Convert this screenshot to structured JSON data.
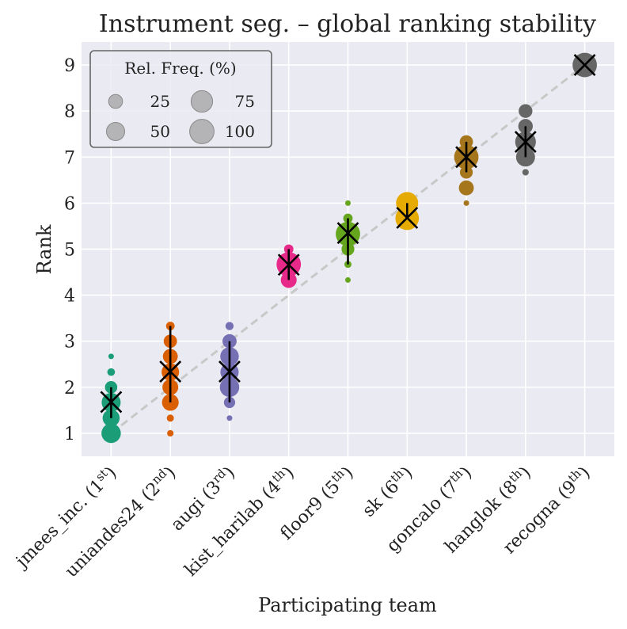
{
  "chart_data": {
    "type": "scatter",
    "title": "Instrument seg. – global ranking stability",
    "xlabel": "Participating team",
    "ylabel": "Rank",
    "ylim": [
      0.5,
      9.5
    ],
    "yticks": [
      "1",
      "2",
      "3",
      "4",
      "5",
      "6",
      "7",
      "8",
      "9"
    ],
    "grid": true,
    "reference_line": {
      "style": "dashed",
      "color": "#c8c8c8",
      "from": [
        1,
        1
      ],
      "to": [
        9,
        9
      ]
    },
    "legend": {
      "title": "Rel. Freq. (%)",
      "position": "top-left",
      "entries": [
        {
          "label": "25",
          "freq": 25
        },
        {
          "label": "50",
          "freq": 50
        },
        {
          "label": "75",
          "freq": 75
        },
        {
          "label": "100",
          "freq": 100
        }
      ]
    },
    "teams": [
      {
        "name": "jmees_inc.",
        "place": "1",
        "suffix": "st",
        "color": "#1b9e77",
        "mean": 1.68,
        "ci": [
          1.33,
          2.0
        ],
        "points": [
          {
            "rank": 1.0,
            "freq": 58
          },
          {
            "rank": 1.33,
            "freq": 42
          },
          {
            "rank": 1.67,
            "freq": 55
          },
          {
            "rank": 2.0,
            "freq": 18
          },
          {
            "rank": 2.33,
            "freq": 4
          },
          {
            "rank": 2.67,
            "freq": 1
          }
        ]
      },
      {
        "name": "uniandes24",
        "place": "2",
        "suffix": "nd",
        "color": "#d95f02",
        "mean": 2.34,
        "ci": [
          1.67,
          3.33
        ],
        "points": [
          {
            "rank": 1.0,
            "freq": 2
          },
          {
            "rank": 1.33,
            "freq": 3
          },
          {
            "rank": 1.67,
            "freq": 40
          },
          {
            "rank": 2.0,
            "freq": 35
          },
          {
            "rank": 2.33,
            "freq": 45
          },
          {
            "rank": 2.67,
            "freq": 30
          },
          {
            "rank": 3.0,
            "freq": 22
          },
          {
            "rank": 3.33,
            "freq": 6
          }
        ]
      },
      {
        "name": "augi",
        "place": "3",
        "suffix": "rd",
        "color": "#7570b3",
        "mean": 2.34,
        "ci": [
          1.67,
          3.0
        ],
        "points": [
          {
            "rank": 1.33,
            "freq": 1
          },
          {
            "rank": 1.67,
            "freq": 14
          },
          {
            "rank": 2.0,
            "freq": 58
          },
          {
            "rank": 2.33,
            "freq": 50
          },
          {
            "rank": 2.67,
            "freq": 52
          },
          {
            "rank": 3.0,
            "freq": 26
          },
          {
            "rank": 3.33,
            "freq": 5
          }
        ]
      },
      {
        "name": "kist_harilab",
        "place": "4",
        "suffix": "th",
        "color": "#e7298a",
        "mean": 4.66,
        "ci": [
          4.33,
          5.0
        ],
        "points": [
          {
            "rank": 4.33,
            "freq": 35
          },
          {
            "rank": 4.67,
            "freq": 100
          },
          {
            "rank": 5.0,
            "freq": 8
          }
        ]
      },
      {
        "name": "floor9",
        "place": "5",
        "suffix": "th",
        "color": "#66a61e",
        "mean": 5.35,
        "ci": [
          4.67,
          5.67
        ],
        "points": [
          {
            "rank": 4.33,
            "freq": 1
          },
          {
            "rank": 4.67,
            "freq": 3
          },
          {
            "rank": 5.0,
            "freq": 20
          },
          {
            "rank": 5.33,
            "freq": 100
          },
          {
            "rank": 5.67,
            "freq": 8
          },
          {
            "rank": 6.0,
            "freq": 1
          }
        ]
      },
      {
        "name": "sk",
        "place": "6",
        "suffix": "th",
        "color": "#e6ab02",
        "mean": 5.68,
        "ci": [
          5.67,
          6.0
        ],
        "points": [
          {
            "rank": 5.67,
            "freq": 92
          },
          {
            "rank": 6.0,
            "freq": 80
          }
        ]
      },
      {
        "name": "goncalo",
        "place": "7",
        "suffix": "th",
        "color": "#a6761d",
        "mean": 7.0,
        "ci": [
          6.67,
          7.33
        ],
        "points": [
          {
            "rank": 6.0,
            "freq": 1
          },
          {
            "rank": 6.33,
            "freq": 30
          },
          {
            "rank": 6.67,
            "freq": 20
          },
          {
            "rank": 7.0,
            "freq": 100
          },
          {
            "rank": 7.33,
            "freq": 22
          }
        ]
      },
      {
        "name": "hanglok",
        "place": "8",
        "suffix": "th",
        "color": "#666666",
        "mean": 7.33,
        "ci": [
          7.0,
          7.67
        ],
        "points": [
          {
            "rank": 6.67,
            "freq": 2
          },
          {
            "rank": 7.0,
            "freq": 55
          },
          {
            "rank": 7.33,
            "freq": 68
          },
          {
            "rank": 7.67,
            "freq": 28
          },
          {
            "rank": 8.0,
            "freq": 24
          }
        ]
      },
      {
        "name": "recogna",
        "place": "9",
        "suffix": "th",
        "color": "#666666",
        "mean": 9.0,
        "ci": [
          9.0,
          9.0
        ],
        "points": [
          {
            "rank": 9.0,
            "freq": 100
          }
        ]
      }
    ]
  }
}
